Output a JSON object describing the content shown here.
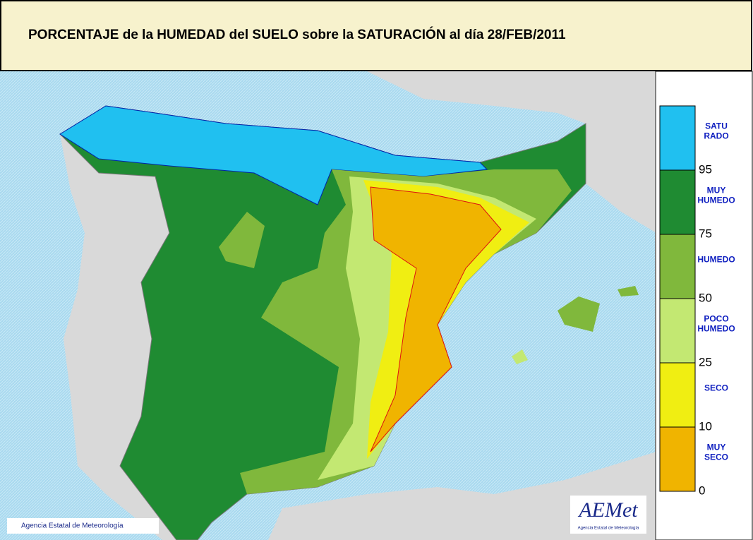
{
  "header": {
    "title": "PORCENTAJE de la HUMEDAD del SUELO sobre la SATURACIÓN al día 28/FEB/2011"
  },
  "legend": {
    "items": [
      {
        "label_lines": [
          "SATU",
          "RADO"
        ],
        "threshold": "95"
      },
      {
        "label_lines": [
          "MUY",
          "HUMEDO"
        ],
        "threshold": "75"
      },
      {
        "label_lines": [
          "HUMEDO"
        ],
        "threshold": "50"
      },
      {
        "label_lines": [
          "POCO",
          "HUMEDO"
        ],
        "threshold": "25"
      },
      {
        "label_lines": [
          "SECO"
        ],
        "threshold": "10"
      },
      {
        "label_lines": [
          "MUY",
          "SECO"
        ],
        "threshold": "0"
      }
    ]
  },
  "footer": {
    "credit": "Agencia Estatal de Meteorología",
    "logo": "AEMet",
    "logo_sub": "Agencia Estatal de Meteorología"
  }
}
